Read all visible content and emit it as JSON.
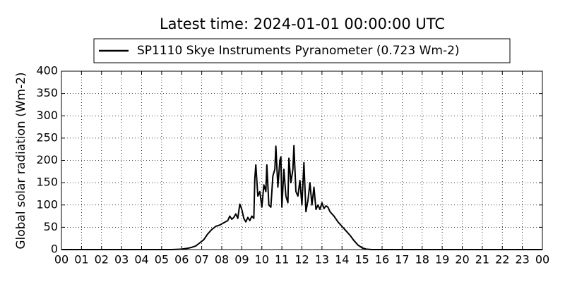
{
  "chart_data": {
    "type": "line",
    "title": "Latest time: 2024-01-01 00:00:00 UTC",
    "ylabel": "Global solar radiation (Wm-2)",
    "xlim": [
      0,
      24
    ],
    "ylim": [
      0,
      400
    ],
    "xticks": [
      {
        "value": 0,
        "label": "00"
      },
      {
        "value": 1,
        "label": "01"
      },
      {
        "value": 2,
        "label": "02"
      },
      {
        "value": 3,
        "label": "03"
      },
      {
        "value": 4,
        "label": "04"
      },
      {
        "value": 5,
        "label": "05"
      },
      {
        "value": 6,
        "label": "06"
      },
      {
        "value": 7,
        "label": "07"
      },
      {
        "value": 8,
        "label": "08"
      },
      {
        "value": 9,
        "label": "09"
      },
      10,
      11,
      12,
      13,
      14,
      15,
      16,
      17,
      18,
      19,
      20,
      21,
      22,
      23,
      {
        "value": 24,
        "label": "00"
      }
    ],
    "yticks": [
      0,
      50,
      100,
      150,
      200,
      250,
      300,
      350,
      400
    ],
    "grid": true,
    "legend": "top",
    "x": [
      0,
      5.5,
      6.0,
      6.3,
      6.5,
      6.7,
      6.9,
      7.1,
      7.3,
      7.5,
      7.7,
      7.9,
      8.1,
      8.3,
      8.4,
      8.5,
      8.6,
      8.7,
      8.8,
      8.9,
      9.0,
      9.1,
      9.2,
      9.3,
      9.4,
      9.5,
      9.6,
      9.65,
      9.7,
      9.8,
      9.9,
      10.0,
      10.1,
      10.2,
      10.25,
      10.35,
      10.45,
      10.55,
      10.65,
      10.7,
      10.8,
      10.9,
      10.95,
      11.0,
      11.1,
      11.2,
      11.3,
      11.35,
      11.45,
      11.55,
      11.6,
      11.7,
      11.8,
      11.9,
      12.0,
      12.1,
      12.2,
      12.3,
      12.4,
      12.5,
      12.6,
      12.7,
      12.8,
      12.9,
      13.0,
      13.1,
      13.2,
      13.3,
      13.4,
      13.6,
      13.8,
      14.0,
      14.2,
      14.4,
      14.6,
      14.8,
      15.0,
      15.2,
      15.5,
      24
    ],
    "series": [
      {
        "name": "SP1110 Skye Instruments Pyranometer (0.723 Wm-2)",
        "color": "#000000",
        "values": [
          0,
          0,
          1,
          3,
          5,
          8,
          15,
          22,
          35,
          45,
          52,
          55,
          60,
          65,
          75,
          68,
          72,
          80,
          70,
          102,
          90,
          70,
          62,
          72,
          65,
          75,
          70,
          160,
          190,
          120,
          130,
          95,
          145,
          130,
          190,
          100,
          95,
          165,
          180,
          232,
          140,
          200,
          208,
          95,
          180,
          120,
          105,
          205,
          150,
          180,
          233,
          130,
          120,
          155,
          100,
          195,
          85,
          110,
          150,
          100,
          140,
          90,
          100,
          90,
          105,
          92,
          98,
          95,
          85,
          75,
          62,
          52,
          42,
          32,
          20,
          10,
          4,
          1,
          0,
          0
        ]
      }
    ]
  }
}
